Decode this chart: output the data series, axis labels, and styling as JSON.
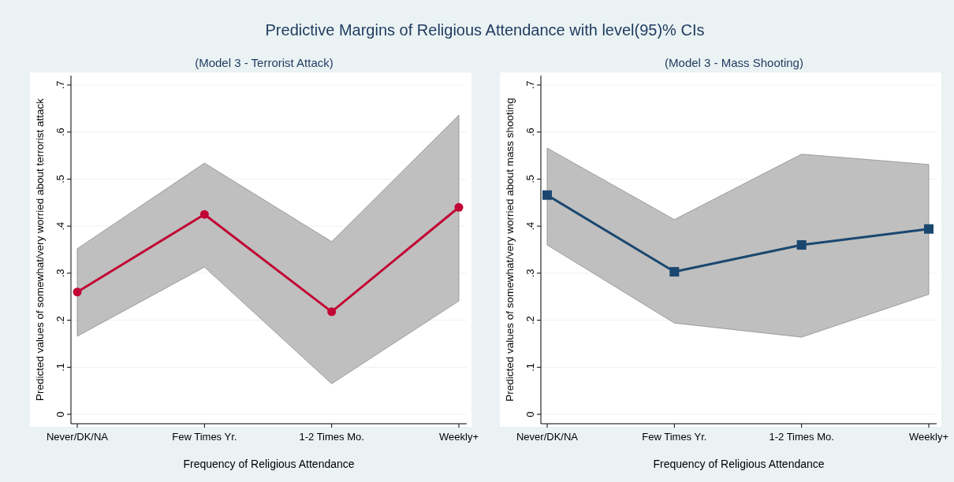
{
  "chart_data": [
    {
      "type": "line",
      "title": "Predictive Margins of Religious Attendance with level(95)% CIs",
      "subtitle": "(Model 3 - Terrorist Attack)",
      "xlabel": "Frequency of Religious Attendance",
      "ylabel": "Predicted values of somewhat/very worried about terrorist attack",
      "categories": [
        "Never/DK/NA",
        "Few Times Yr.",
        "1-2 Times Mo.",
        "Weekly+"
      ],
      "ylim": [
        -0.02,
        0.72
      ],
      "yticks": [
        {
          "value": 0,
          "label": "0"
        },
        {
          "value": 0.1,
          "label": ".1"
        },
        {
          "value": 0.2,
          "label": ".2"
        },
        {
          "value": 0.3,
          "label": ".3"
        },
        {
          "value": 0.4,
          "label": ".4"
        },
        {
          "value": 0.5,
          "label": ".5"
        },
        {
          "value": 0.6,
          "label": ".6"
        },
        {
          "value": 0.7,
          "label": ".7"
        }
      ],
      "grid": "y",
      "marker": "circle",
      "line_style": "solid",
      "series": [
        {
          "color": "#c10534",
          "values": [
            0.26,
            0.425,
            0.218,
            0.44
          ],
          "lower": [
            0.166,
            0.313,
            0.065,
            0.241
          ],
          "upper": [
            0.352,
            0.534,
            0.367,
            0.636
          ]
        }
      ]
    },
    {
      "type": "line",
      "subtitle": "(Model 3 - Mass Shooting)",
      "xlabel": "Frequency of Religious Attendance",
      "ylabel": "Predicted values of somewhat/very worried about mass shooting",
      "categories": [
        "Never/DK/NA",
        "Few Times Yr.",
        "1-2 Times Mo.",
        "Weekly+"
      ],
      "ylim": [
        -0.02,
        0.72
      ],
      "yticks": [
        {
          "value": 0,
          "label": "0"
        },
        {
          "value": 0.1,
          "label": ".1"
        },
        {
          "value": 0.2,
          "label": ".2"
        },
        {
          "value": 0.3,
          "label": ".3"
        },
        {
          "value": 0.4,
          "label": ".4"
        },
        {
          "value": 0.5,
          "label": ".5"
        },
        {
          "value": 0.6,
          "label": ".6"
        },
        {
          "value": 0.7,
          "label": ".7"
        }
      ],
      "grid": "y",
      "marker": "square",
      "line_style": "solid",
      "series": [
        {
          "color": "#1a476f",
          "values": [
            0.466,
            0.303,
            0.36,
            0.394
          ],
          "lower": [
            0.36,
            0.194,
            0.164,
            0.255
          ],
          "upper": [
            0.566,
            0.414,
            0.553,
            0.531
          ]
        }
      ]
    }
  ]
}
